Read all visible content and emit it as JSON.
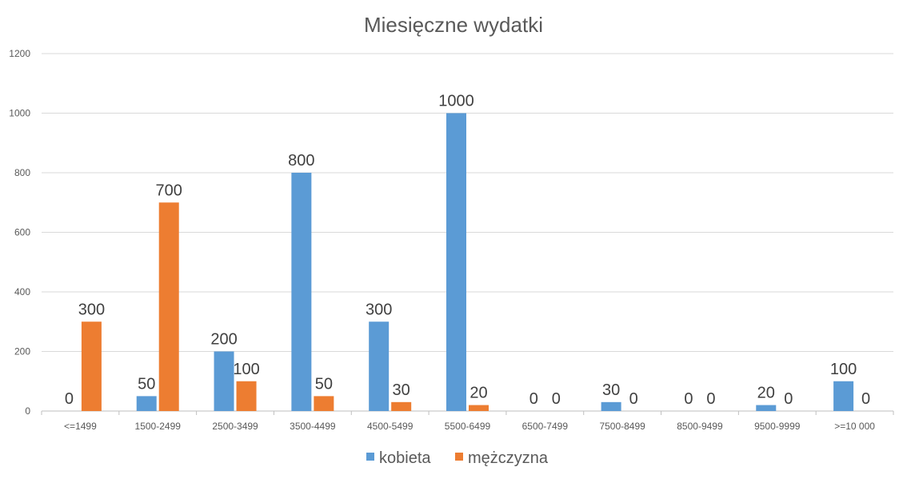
{
  "chart_data": {
    "type": "bar",
    "title": "Miesięczne wydatki",
    "xlabel": "",
    "ylabel": "",
    "categories": [
      "<=1499",
      "1500-2499",
      "2500-3499",
      "3500-4499",
      "4500-5499",
      "5500-6499",
      "6500-7499",
      "7500-8499",
      "8500-9499",
      "9500-9999",
      ">=10 000"
    ],
    "series": [
      {
        "name": "kobieta",
        "color": "#5B9BD5",
        "values": [
          0,
          50,
          200,
          800,
          300,
          1000,
          0,
          30,
          0,
          20,
          100
        ]
      },
      {
        "name": "mężczyzna",
        "color": "#ED7D31",
        "values": [
          300,
          700,
          100,
          50,
          30,
          20,
          0,
          0,
          0,
          0,
          0
        ]
      }
    ],
    "ylim": [
      0,
      1200
    ],
    "yticks": [
      0,
      200,
      400,
      600,
      800,
      1000,
      1200
    ],
    "grid": true,
    "legend_position": "bottom"
  }
}
